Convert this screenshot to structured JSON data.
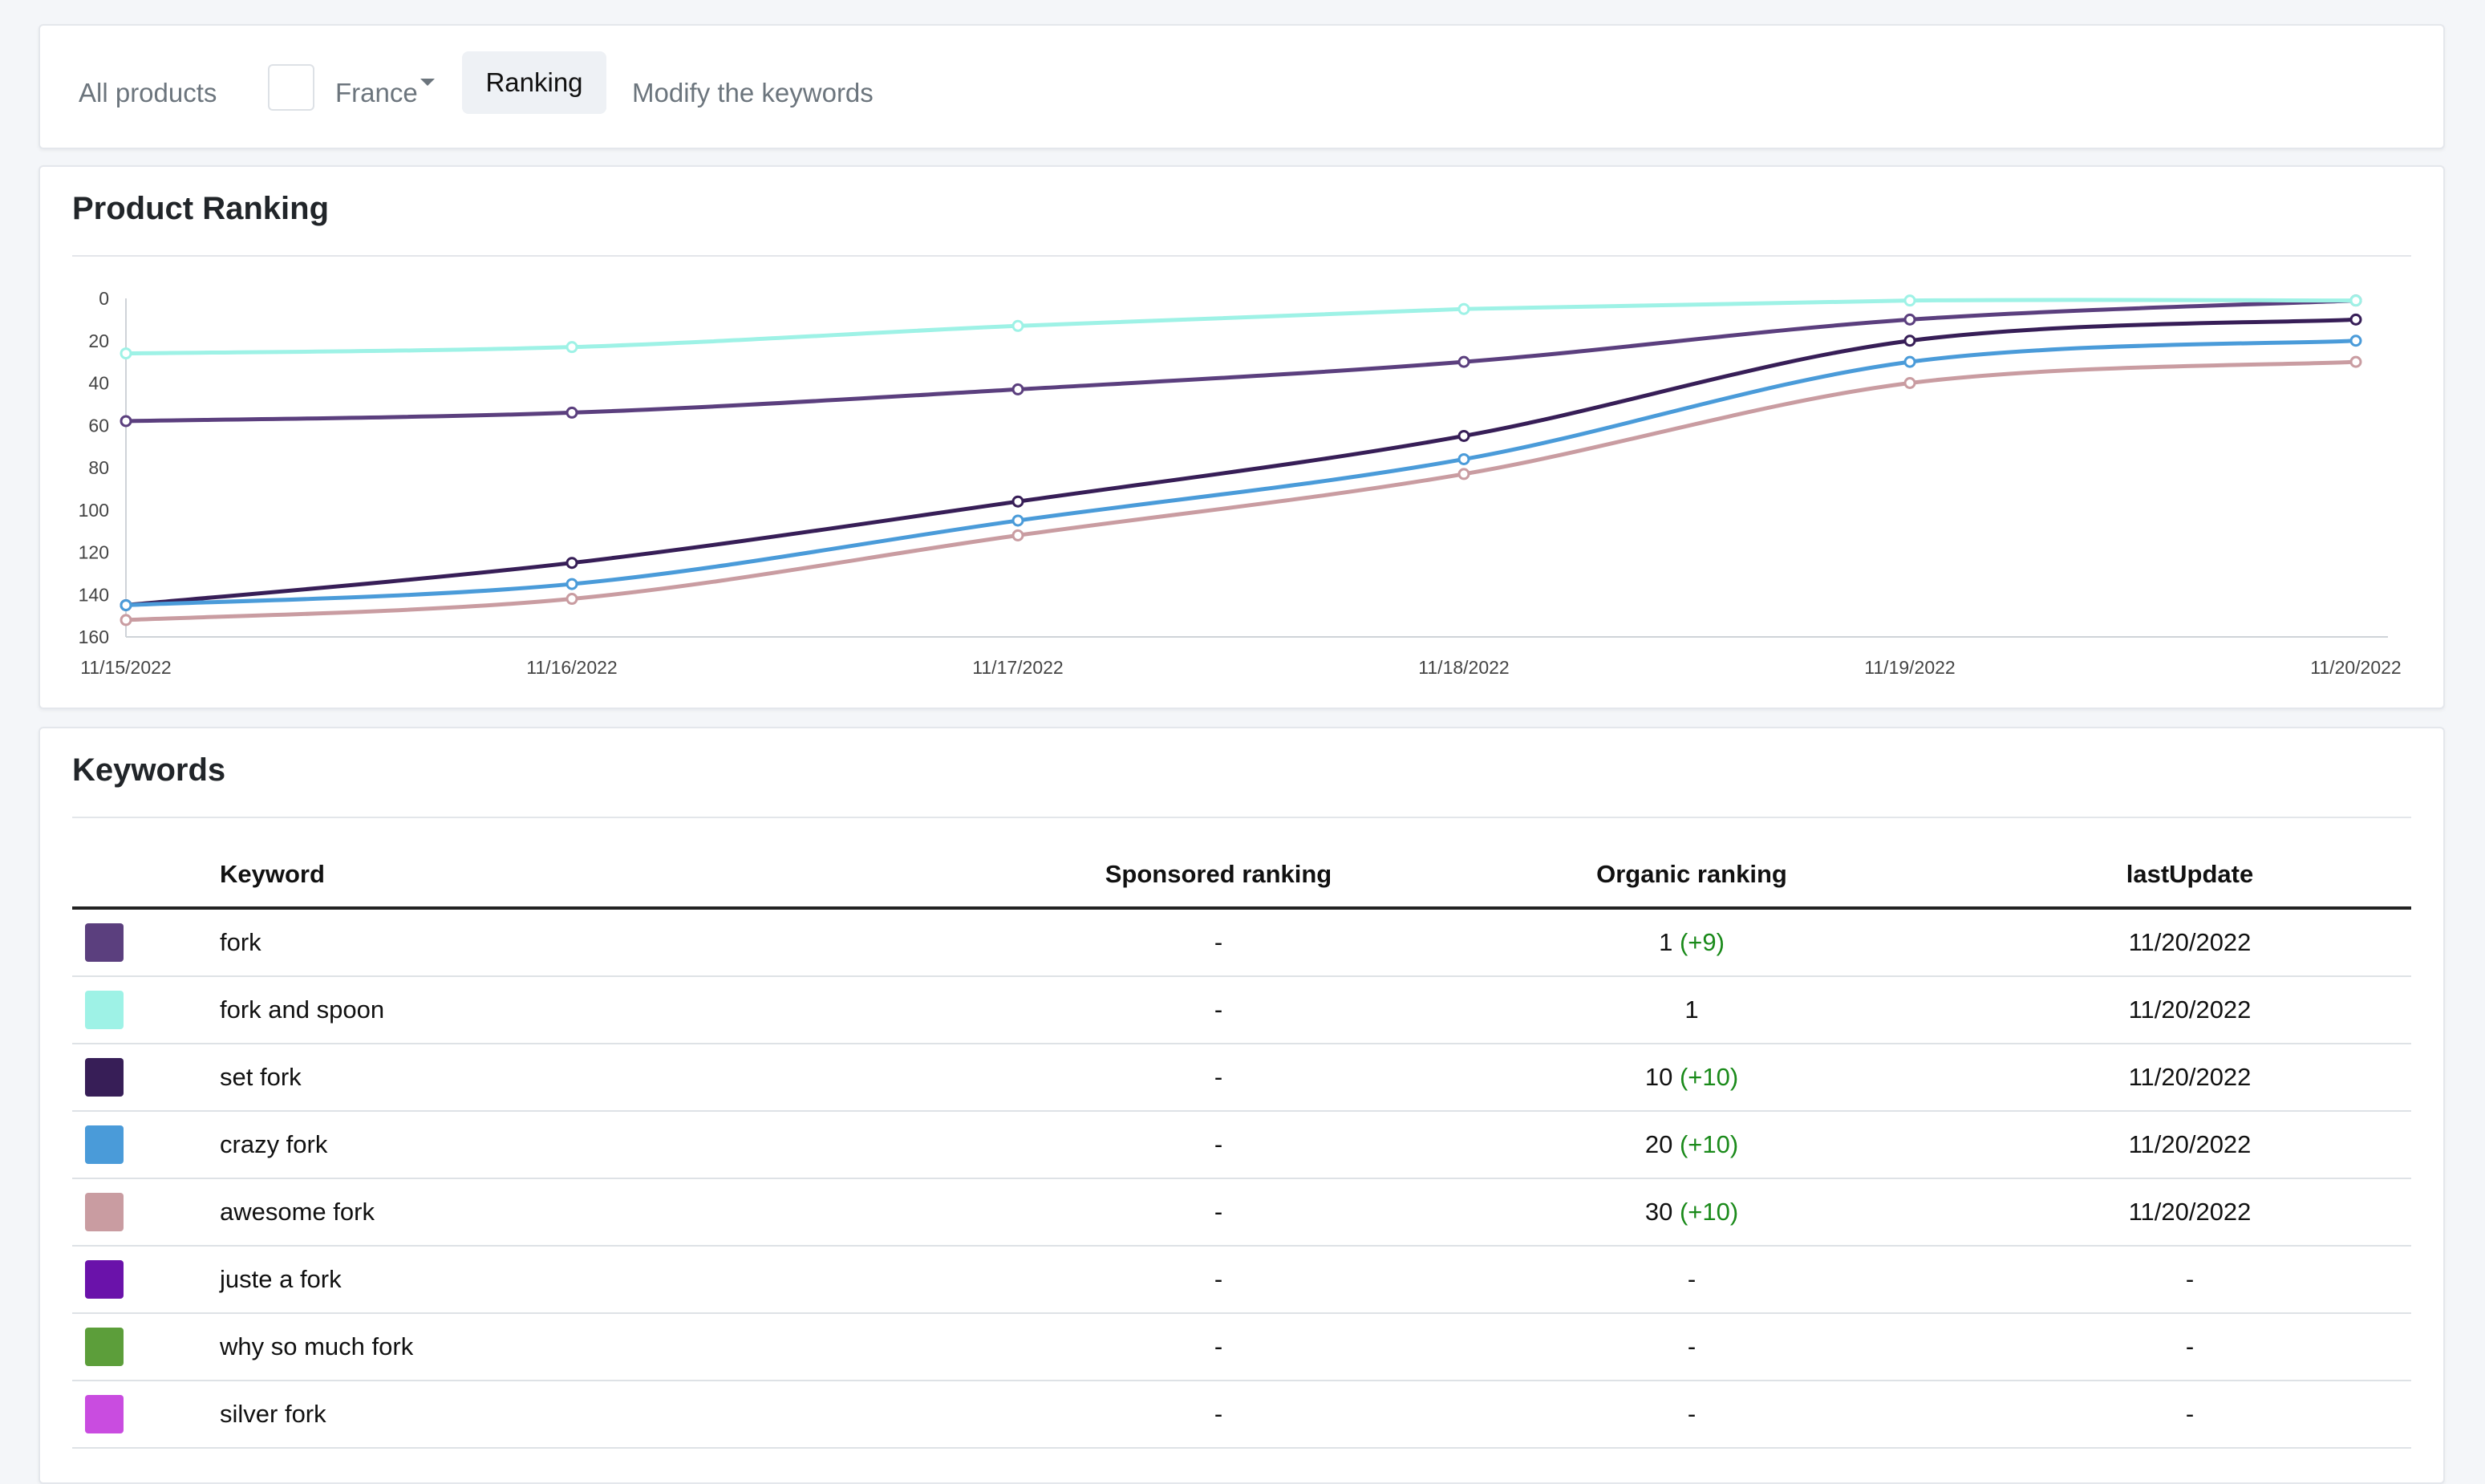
{
  "nav": {
    "all_products": "All products",
    "country": "France",
    "ranking_tab": "Ranking",
    "modify_keywords": "Modify the keywords"
  },
  "chart_section": {
    "title": "Product Ranking"
  },
  "chart_data": {
    "type": "line",
    "title": "Product Ranking",
    "xlabel": "",
    "ylabel": "",
    "y_inverted": true,
    "ylim": [
      0,
      160
    ],
    "yticks": [
      "0",
      "20",
      "40",
      "60",
      "80",
      "100",
      "120",
      "140",
      "160"
    ],
    "x": [
      "11/15/2022",
      "11/16/2022",
      "11/17/2022",
      "11/18/2022",
      "11/19/2022",
      "11/20/2022"
    ],
    "series": [
      {
        "name": "fork",
        "color": "#5b3f7e",
        "values": [
          58,
          54,
          43,
          30,
          10,
          1
        ]
      },
      {
        "name": "fork and spoon",
        "color": "#9ef2e6",
        "values": [
          26,
          23,
          13,
          5,
          1,
          1
        ]
      },
      {
        "name": "set fork",
        "color": "#371e57",
        "values": [
          145,
          125,
          96,
          65,
          20,
          10
        ]
      },
      {
        "name": "crazy fork",
        "color": "#4a9bd9",
        "values": [
          145,
          135,
          105,
          76,
          30,
          20
        ]
      },
      {
        "name": "awesome fork",
        "color": "#c99ca1",
        "values": [
          152,
          142,
          112,
          83,
          40,
          30
        ]
      }
    ]
  },
  "keywords_section": {
    "title": "Keywords",
    "headers": {
      "keyword": "Keyword",
      "sponsored": "Sponsored ranking",
      "organic": "Organic ranking",
      "last_update": "lastUpdate"
    },
    "rows": [
      {
        "color": "#5b3f7e",
        "keyword": "fork",
        "sponsored": "-",
        "organic": "1",
        "delta": "(+9)",
        "last_update": "11/20/2022"
      },
      {
        "color": "#9ef2e6",
        "keyword": "fork and spoon",
        "sponsored": "-",
        "organic": "1",
        "delta": "",
        "last_update": "11/20/2022"
      },
      {
        "color": "#371e57",
        "keyword": "set fork",
        "sponsored": "-",
        "organic": "10",
        "delta": "(+10)",
        "last_update": "11/20/2022"
      },
      {
        "color": "#4a9bd9",
        "keyword": "crazy fork",
        "sponsored": "-",
        "organic": "20",
        "delta": "(+10)",
        "last_update": "11/20/2022"
      },
      {
        "color": "#c99ca1",
        "keyword": "awesome fork",
        "sponsored": "-",
        "organic": "30",
        "delta": "(+10)",
        "last_update": "11/20/2022"
      },
      {
        "color": "#6a12aa",
        "keyword": "juste a fork",
        "sponsored": "-",
        "organic": "-",
        "delta": "",
        "last_update": "-"
      },
      {
        "color": "#5c9e3a",
        "keyword": "why so much fork",
        "sponsored": "-",
        "organic": "-",
        "delta": "",
        "last_update": "-"
      },
      {
        "color": "#c94ce0",
        "keyword": "silver fork",
        "sponsored": "-",
        "organic": "-",
        "delta": "",
        "last_update": "-"
      }
    ]
  }
}
